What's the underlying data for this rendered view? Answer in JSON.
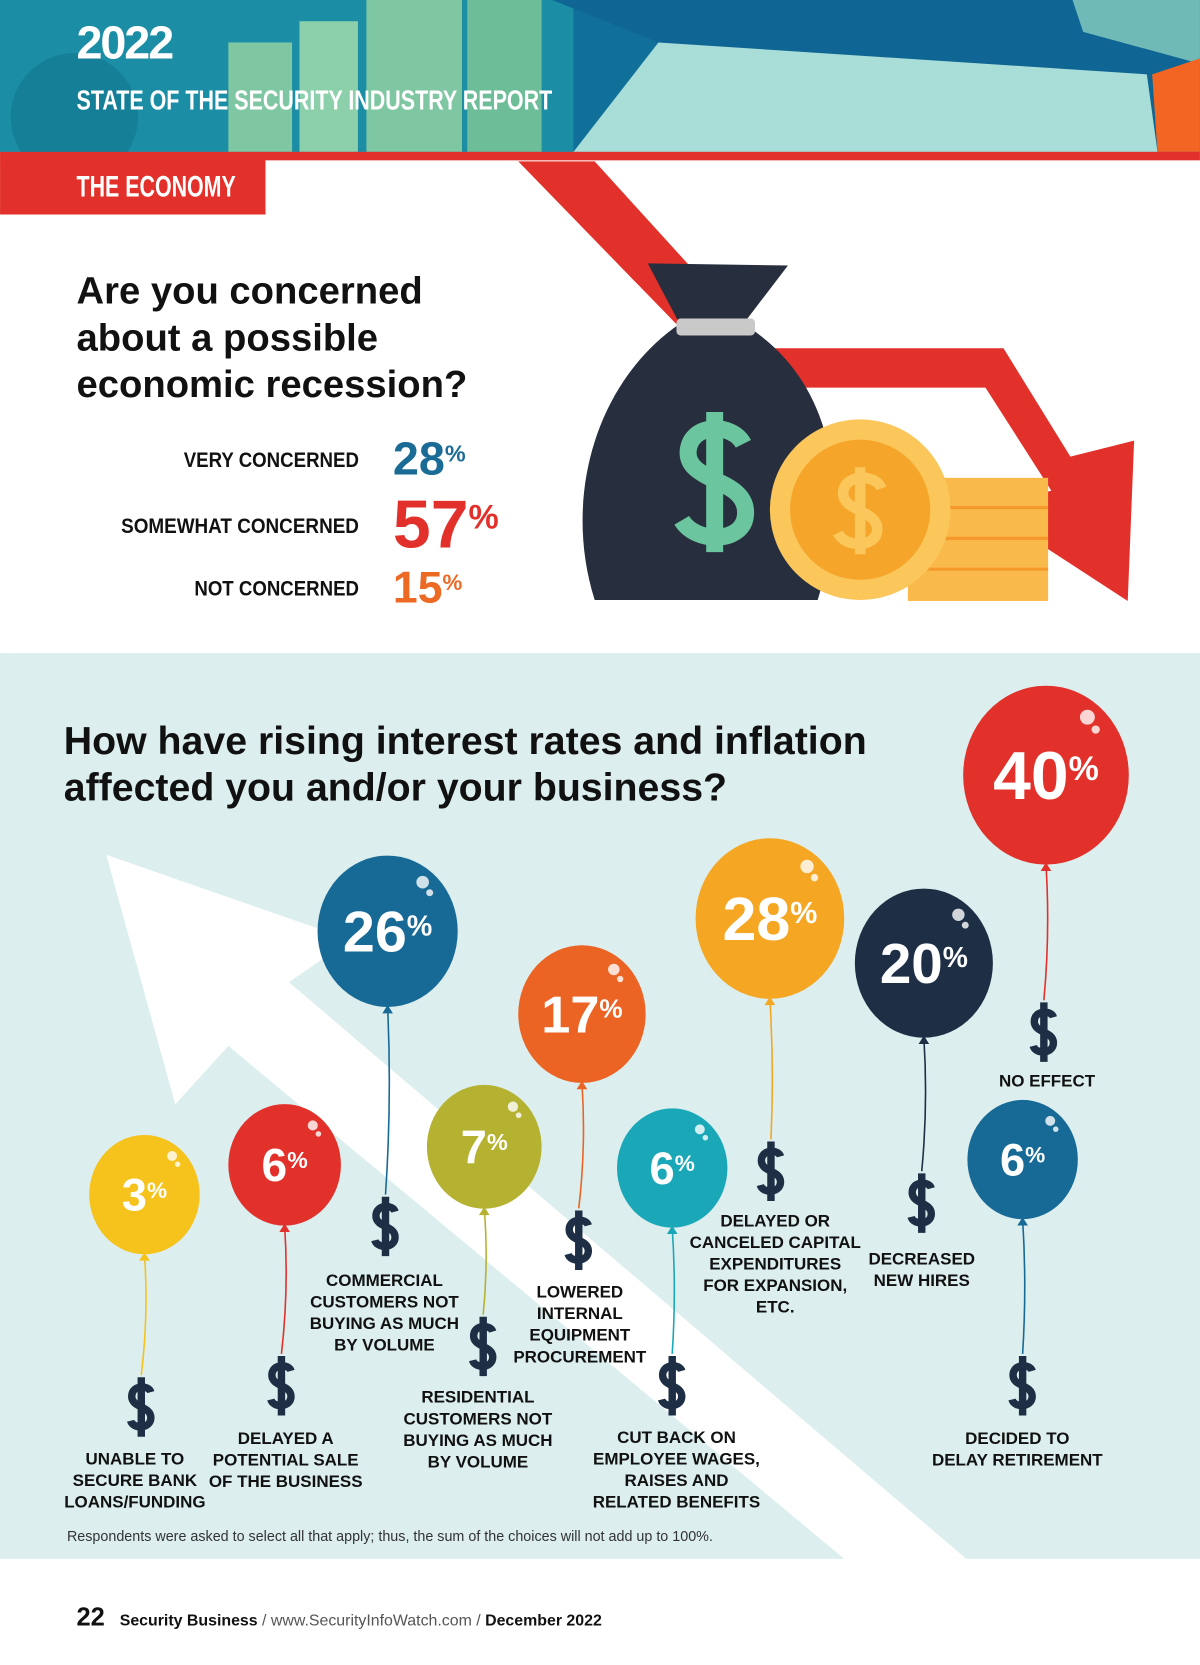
{
  "header": {
    "year": "2022",
    "report": "STATE OF THE SECURITY INDUSTRY REPORT",
    "section": "THE ECONOMY"
  },
  "q1": {
    "question": [
      "Are you concerned",
      "about a possible",
      "economic recession?"
    ],
    "answers": [
      {
        "label": "VERY CONCERNED",
        "value": "28%"
      },
      {
        "label": "SOMEWHAT CONCERNED",
        "value": "57%"
      },
      {
        "label": "NOT CONCERNED",
        "value": "15%"
      }
    ]
  },
  "q2": {
    "question": [
      "How have rising interest rates and inflation",
      "affected you and/or your business?"
    ],
    "balloons": [
      {
        "value": "3%",
        "label": [
          "UNABLE TO",
          "SECURE BANK",
          "LOANS/FUNDING"
        ]
      },
      {
        "value": "6%",
        "label": [
          "DELAYED A",
          "POTENTIAL SALE",
          "OF THE BUSINESS"
        ]
      },
      {
        "value": "26%",
        "label": [
          "COMMERCIAL",
          "CUSTOMERS NOT",
          "BUYING AS MUCH",
          "BY VOLUME"
        ]
      },
      {
        "value": "7%",
        "label": [
          "RESIDENTIAL",
          "CUSTOMERS NOT",
          "BUYING AS MUCH",
          "BY VOLUME"
        ]
      },
      {
        "value": "17%",
        "label": [
          "LOWERED",
          "INTERNAL",
          "EQUIPMENT",
          "PROCUREMENT"
        ]
      },
      {
        "value": "6%",
        "label": [
          "CUT BACK ON",
          "EMPLOYEE WAGES,",
          "RAISES AND",
          "RELATED BENEFITS"
        ]
      },
      {
        "value": "28%",
        "label": [
          "DELAYED OR",
          "CANCELED CAPITAL",
          "EXPENDITURES",
          "FOR EXPANSION,",
          "ETC."
        ]
      },
      {
        "value": "20%",
        "label": [
          "DECREASED",
          "NEW HIRES"
        ]
      },
      {
        "value": "40%",
        "label": [
          "NO EFFECT"
        ]
      },
      {
        "value": "6%",
        "label": [
          "DECIDED TO",
          "DELAY RETIREMENT"
        ]
      }
    ],
    "note": "Respondents were asked to select all that apply; thus, the sum of the choices will not add up to 100%."
  },
  "footer": {
    "page": "22",
    "magazine": "Security Business",
    "url": " / www.SecurityInfoWatch.com / ",
    "date": "December 2022"
  }
}
